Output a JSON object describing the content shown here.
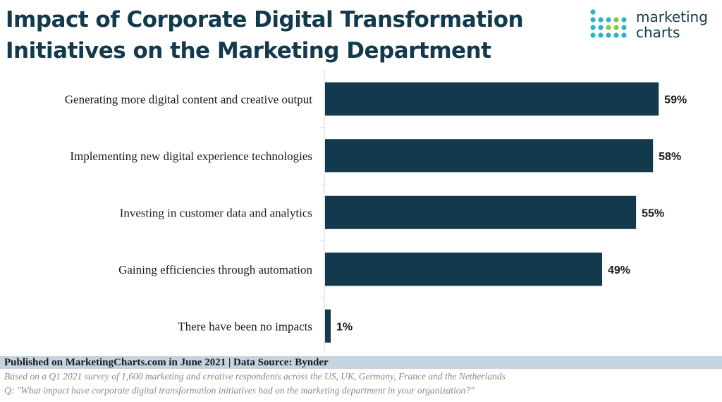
{
  "title_line1": "Impact of Corporate Digital Transformation",
  "title_line2": "Initiatives on the Marketing Department",
  "logo": {
    "line1": "marketing",
    "line2": "charts",
    "dot_colors": [
      "#27b5c9",
      "#8cc63f",
      "#12394c"
    ]
  },
  "chart_data": {
    "type": "bar",
    "orientation": "horizontal",
    "categories": [
      "Generating more digital content and creative output",
      "Implementing new digital experience technologies",
      "Investing in customer data and analytics",
      "Gaining efficiencies through automation",
      "There have been no impacts"
    ],
    "values": [
      59,
      58,
      55,
      49,
      1
    ],
    "data_labels": [
      "59%",
      "58%",
      "55%",
      "49%",
      "1%"
    ],
    "xlim": [
      0,
      65
    ],
    "bar_color": "#12394c"
  },
  "footer": {
    "published": "Published on MarketingCharts.com in June 2021 | Data Source: Bynder",
    "note1": "Based on a Q1 2021 survey of 1,600 marketing and creative respondents across the US, UK, Germany, France and the Netherlands",
    "note2": "Q: \"What impact have corporate digital transformation initiatives had on the marketing department in your organization?\""
  }
}
